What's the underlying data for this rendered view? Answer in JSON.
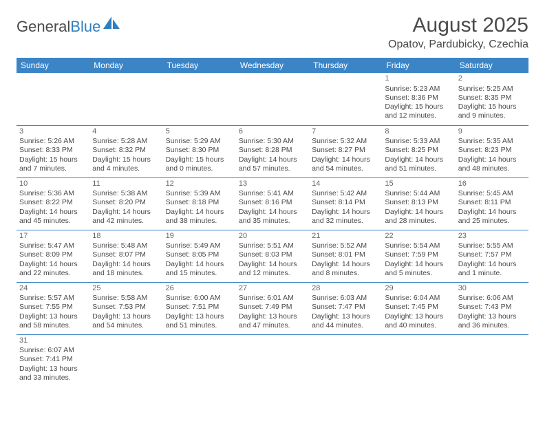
{
  "logo": {
    "text_first": "General",
    "text_second": "Blue",
    "sail_color": "#2f7fc2"
  },
  "title": "August 2025",
  "location": "Opatov, Pardubicky, Czechia",
  "colors": {
    "header_bg": "#3b85c6",
    "header_text": "#ffffff",
    "rule": "#3b85c6",
    "body_text": "#4a4a4a",
    "background": "#ffffff"
  },
  "fonts": {
    "title_size": 30,
    "location_size": 16,
    "dayhead_size": 12,
    "cell_size": 10.5
  },
  "day_headers": [
    "Sunday",
    "Monday",
    "Tuesday",
    "Wednesday",
    "Thursday",
    "Friday",
    "Saturday"
  ],
  "weeks": [
    [
      null,
      null,
      null,
      null,
      null,
      {
        "n": "1",
        "sunrise": "Sunrise: 5:23 AM",
        "sunset": "Sunset: 8:36 PM",
        "day1": "Daylight: 15 hours",
        "day2": "and 12 minutes."
      },
      {
        "n": "2",
        "sunrise": "Sunrise: 5:25 AM",
        "sunset": "Sunset: 8:35 PM",
        "day1": "Daylight: 15 hours",
        "day2": "and 9 minutes."
      }
    ],
    [
      {
        "n": "3",
        "sunrise": "Sunrise: 5:26 AM",
        "sunset": "Sunset: 8:33 PM",
        "day1": "Daylight: 15 hours",
        "day2": "and 7 minutes."
      },
      {
        "n": "4",
        "sunrise": "Sunrise: 5:28 AM",
        "sunset": "Sunset: 8:32 PM",
        "day1": "Daylight: 15 hours",
        "day2": "and 4 minutes."
      },
      {
        "n": "5",
        "sunrise": "Sunrise: 5:29 AM",
        "sunset": "Sunset: 8:30 PM",
        "day1": "Daylight: 15 hours",
        "day2": "and 0 minutes."
      },
      {
        "n": "6",
        "sunrise": "Sunrise: 5:30 AM",
        "sunset": "Sunset: 8:28 PM",
        "day1": "Daylight: 14 hours",
        "day2": "and 57 minutes."
      },
      {
        "n": "7",
        "sunrise": "Sunrise: 5:32 AM",
        "sunset": "Sunset: 8:27 PM",
        "day1": "Daylight: 14 hours",
        "day2": "and 54 minutes."
      },
      {
        "n": "8",
        "sunrise": "Sunrise: 5:33 AM",
        "sunset": "Sunset: 8:25 PM",
        "day1": "Daylight: 14 hours",
        "day2": "and 51 minutes."
      },
      {
        "n": "9",
        "sunrise": "Sunrise: 5:35 AM",
        "sunset": "Sunset: 8:23 PM",
        "day1": "Daylight: 14 hours",
        "day2": "and 48 minutes."
      }
    ],
    [
      {
        "n": "10",
        "sunrise": "Sunrise: 5:36 AM",
        "sunset": "Sunset: 8:22 PM",
        "day1": "Daylight: 14 hours",
        "day2": "and 45 minutes."
      },
      {
        "n": "11",
        "sunrise": "Sunrise: 5:38 AM",
        "sunset": "Sunset: 8:20 PM",
        "day1": "Daylight: 14 hours",
        "day2": "and 42 minutes."
      },
      {
        "n": "12",
        "sunrise": "Sunrise: 5:39 AM",
        "sunset": "Sunset: 8:18 PM",
        "day1": "Daylight: 14 hours",
        "day2": "and 38 minutes."
      },
      {
        "n": "13",
        "sunrise": "Sunrise: 5:41 AM",
        "sunset": "Sunset: 8:16 PM",
        "day1": "Daylight: 14 hours",
        "day2": "and 35 minutes."
      },
      {
        "n": "14",
        "sunrise": "Sunrise: 5:42 AM",
        "sunset": "Sunset: 8:14 PM",
        "day1": "Daylight: 14 hours",
        "day2": "and 32 minutes."
      },
      {
        "n": "15",
        "sunrise": "Sunrise: 5:44 AM",
        "sunset": "Sunset: 8:13 PM",
        "day1": "Daylight: 14 hours",
        "day2": "and 28 minutes."
      },
      {
        "n": "16",
        "sunrise": "Sunrise: 5:45 AM",
        "sunset": "Sunset: 8:11 PM",
        "day1": "Daylight: 14 hours",
        "day2": "and 25 minutes."
      }
    ],
    [
      {
        "n": "17",
        "sunrise": "Sunrise: 5:47 AM",
        "sunset": "Sunset: 8:09 PM",
        "day1": "Daylight: 14 hours",
        "day2": "and 22 minutes."
      },
      {
        "n": "18",
        "sunrise": "Sunrise: 5:48 AM",
        "sunset": "Sunset: 8:07 PM",
        "day1": "Daylight: 14 hours",
        "day2": "and 18 minutes."
      },
      {
        "n": "19",
        "sunrise": "Sunrise: 5:49 AM",
        "sunset": "Sunset: 8:05 PM",
        "day1": "Daylight: 14 hours",
        "day2": "and 15 minutes."
      },
      {
        "n": "20",
        "sunrise": "Sunrise: 5:51 AM",
        "sunset": "Sunset: 8:03 PM",
        "day1": "Daylight: 14 hours",
        "day2": "and 12 minutes."
      },
      {
        "n": "21",
        "sunrise": "Sunrise: 5:52 AM",
        "sunset": "Sunset: 8:01 PM",
        "day1": "Daylight: 14 hours",
        "day2": "and 8 minutes."
      },
      {
        "n": "22",
        "sunrise": "Sunrise: 5:54 AM",
        "sunset": "Sunset: 7:59 PM",
        "day1": "Daylight: 14 hours",
        "day2": "and 5 minutes."
      },
      {
        "n": "23",
        "sunrise": "Sunrise: 5:55 AM",
        "sunset": "Sunset: 7:57 PM",
        "day1": "Daylight: 14 hours",
        "day2": "and 1 minute."
      }
    ],
    [
      {
        "n": "24",
        "sunrise": "Sunrise: 5:57 AM",
        "sunset": "Sunset: 7:55 PM",
        "day1": "Daylight: 13 hours",
        "day2": "and 58 minutes."
      },
      {
        "n": "25",
        "sunrise": "Sunrise: 5:58 AM",
        "sunset": "Sunset: 7:53 PM",
        "day1": "Daylight: 13 hours",
        "day2": "and 54 minutes."
      },
      {
        "n": "26",
        "sunrise": "Sunrise: 6:00 AM",
        "sunset": "Sunset: 7:51 PM",
        "day1": "Daylight: 13 hours",
        "day2": "and 51 minutes."
      },
      {
        "n": "27",
        "sunrise": "Sunrise: 6:01 AM",
        "sunset": "Sunset: 7:49 PM",
        "day1": "Daylight: 13 hours",
        "day2": "and 47 minutes."
      },
      {
        "n": "28",
        "sunrise": "Sunrise: 6:03 AM",
        "sunset": "Sunset: 7:47 PM",
        "day1": "Daylight: 13 hours",
        "day2": "and 44 minutes."
      },
      {
        "n": "29",
        "sunrise": "Sunrise: 6:04 AM",
        "sunset": "Sunset: 7:45 PM",
        "day1": "Daylight: 13 hours",
        "day2": "and 40 minutes."
      },
      {
        "n": "30",
        "sunrise": "Sunrise: 6:06 AM",
        "sunset": "Sunset: 7:43 PM",
        "day1": "Daylight: 13 hours",
        "day2": "and 36 minutes."
      }
    ],
    [
      {
        "n": "31",
        "sunrise": "Sunrise: 6:07 AM",
        "sunset": "Sunset: 7:41 PM",
        "day1": "Daylight: 13 hours",
        "day2": "and 33 minutes."
      },
      null,
      null,
      null,
      null,
      null,
      null
    ]
  ]
}
